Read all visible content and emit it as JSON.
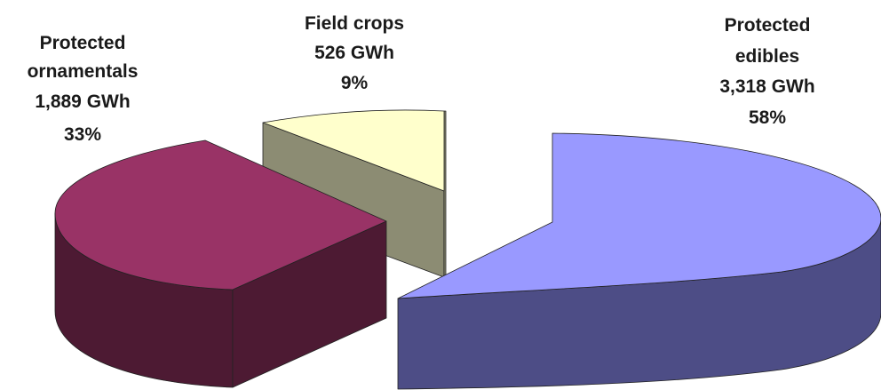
{
  "chart_data": {
    "type": "pie",
    "style": "3d-exploded",
    "unit": "GWh",
    "slices": [
      {
        "label_lines": [
          "Protected",
          "edibles"
        ],
        "value": 3318,
        "value_text": "3,318 GWh",
        "percent": 58,
        "percent_text": "58%",
        "color_top": "#9999ff",
        "color_side": "#4d4d86"
      },
      {
        "label_lines": [
          "Protected",
          "ornamentals"
        ],
        "value": 1889,
        "value_text": "1,889 GWh",
        "percent": 33,
        "percent_text": "33%",
        "color_top": "#993366",
        "color_side": "#4d1a33"
      },
      {
        "label_lines": [
          "Field crops"
        ],
        "value": 526,
        "value_text": "526 GWh",
        "percent": 9,
        "percent_text": "9%",
        "color_top": "#ffffcc",
        "color_side": "#8c8c73"
      }
    ]
  }
}
